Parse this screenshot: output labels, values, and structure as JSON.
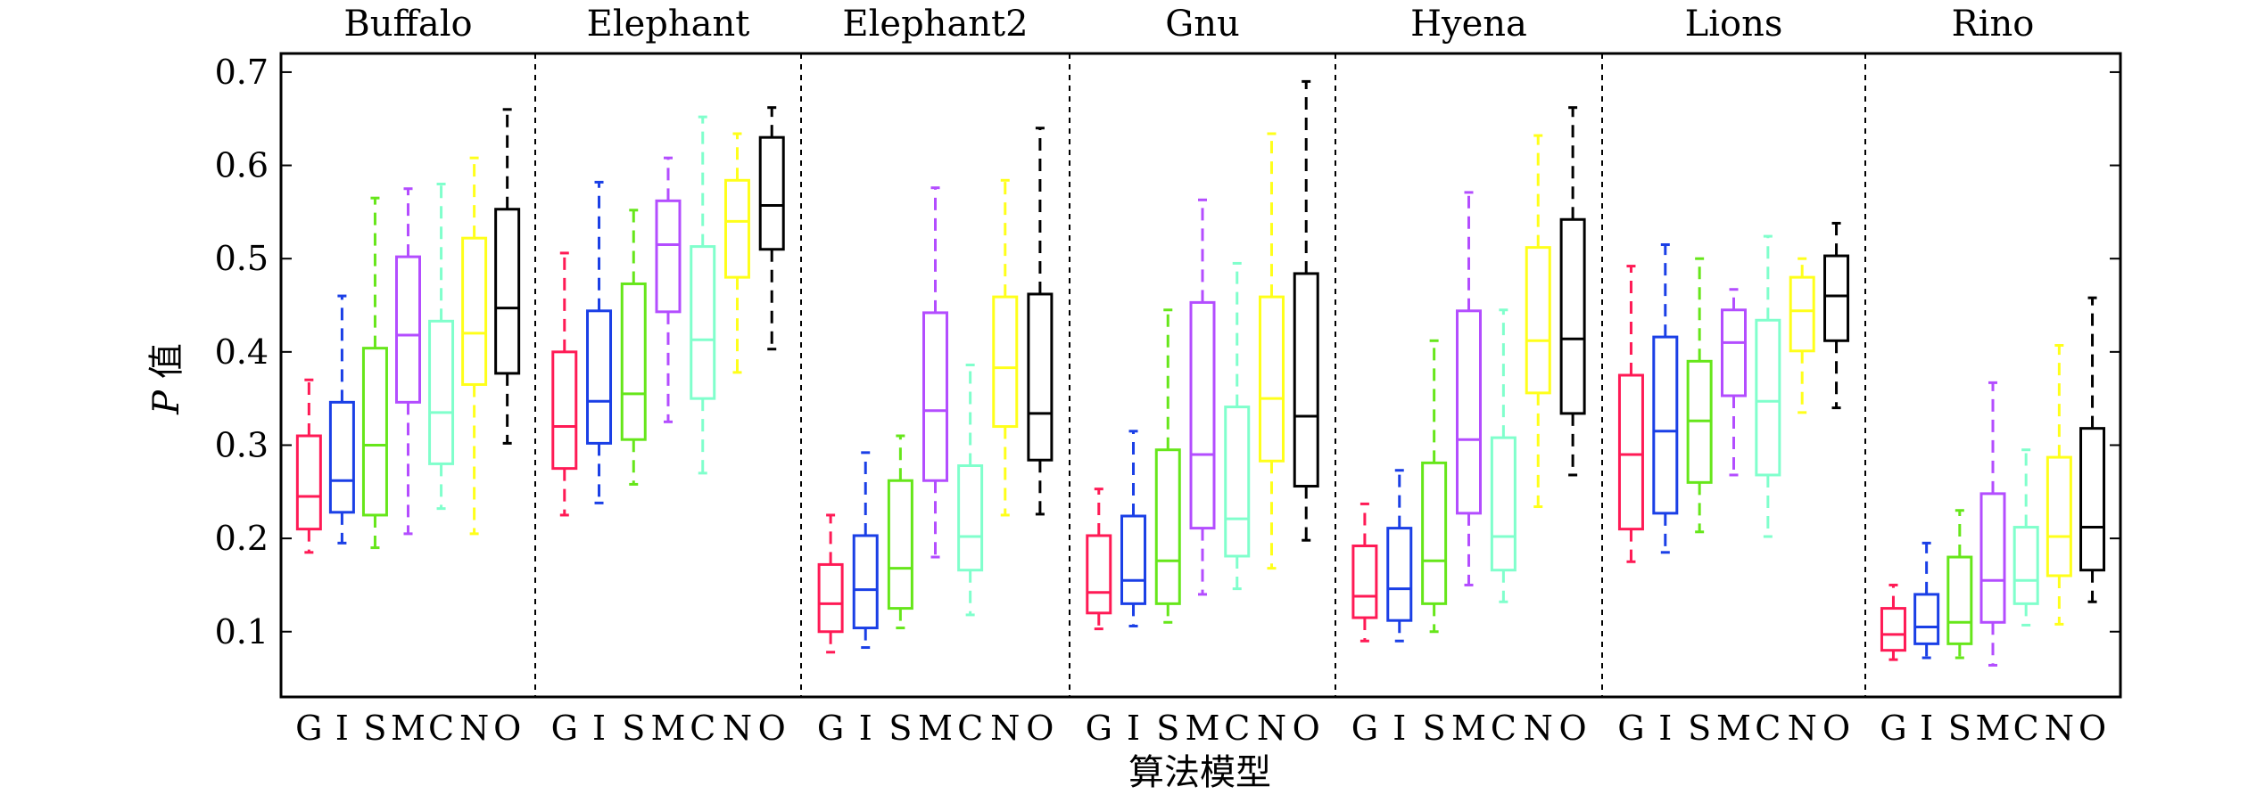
{
  "chart_data": {
    "type": "box",
    "ylabel_italic": "P",
    "ylabel_rest": " 值",
    "xlabel": "算法模型",
    "ylim": [
      0.03,
      0.72
    ],
    "yticks": [
      0.1,
      0.2,
      0.3,
      0.4,
      0.5,
      0.6,
      0.7
    ],
    "ytick_labels": [
      "0.1",
      "0.2",
      "0.3",
      "0.4",
      "0.5",
      "0.6",
      "0.7"
    ],
    "algorithms": [
      "G",
      "I",
      "S",
      "M",
      "C",
      "N",
      "O"
    ],
    "algorithm_colors": [
      "#ff1a55",
      "#1a3fe6",
      "#66e61a",
      "#b34dff",
      "#80ffcc",
      "#ffff1a",
      "#000000"
    ],
    "panels": [
      {
        "name": "Buffalo",
        "boxes": [
          {
            "min": 0.185,
            "q1": 0.21,
            "median": 0.245,
            "q3": 0.31,
            "max": 0.37
          },
          {
            "min": 0.195,
            "q1": 0.228,
            "median": 0.262,
            "q3": 0.346,
            "max": 0.46
          },
          {
            "min": 0.19,
            "q1": 0.225,
            "median": 0.3,
            "q3": 0.404,
            "max": 0.565
          },
          {
            "min": 0.205,
            "q1": 0.346,
            "median": 0.418,
            "q3": 0.502,
            "max": 0.575
          },
          {
            "min": 0.232,
            "q1": 0.28,
            "median": 0.335,
            "q3": 0.433,
            "max": 0.58
          },
          {
            "min": 0.205,
            "q1": 0.365,
            "median": 0.42,
            "q3": 0.522,
            "max": 0.608
          },
          {
            "min": 0.302,
            "q1": 0.377,
            "median": 0.447,
            "q3": 0.553,
            "max": 0.66
          }
        ]
      },
      {
        "name": "Elephant",
        "boxes": [
          {
            "min": 0.225,
            "q1": 0.275,
            "median": 0.32,
            "q3": 0.4,
            "max": 0.506
          },
          {
            "min": 0.238,
            "q1": 0.302,
            "median": 0.347,
            "q3": 0.444,
            "max": 0.582
          },
          {
            "min": 0.258,
            "q1": 0.306,
            "median": 0.355,
            "q3": 0.473,
            "max": 0.552
          },
          {
            "min": 0.325,
            "q1": 0.443,
            "median": 0.515,
            "q3": 0.562,
            "max": 0.608
          },
          {
            "min": 0.27,
            "q1": 0.35,
            "median": 0.413,
            "q3": 0.513,
            "max": 0.652
          },
          {
            "min": 0.378,
            "q1": 0.48,
            "median": 0.54,
            "q3": 0.584,
            "max": 0.634
          },
          {
            "min": 0.403,
            "q1": 0.51,
            "median": 0.557,
            "q3": 0.63,
            "max": 0.662
          }
        ]
      },
      {
        "name": "Elephant2",
        "boxes": [
          {
            "min": 0.078,
            "q1": 0.1,
            "median": 0.13,
            "q3": 0.172,
            "max": 0.225
          },
          {
            "min": 0.083,
            "q1": 0.104,
            "median": 0.145,
            "q3": 0.203,
            "max": 0.292
          },
          {
            "min": 0.104,
            "q1": 0.125,
            "median": 0.168,
            "q3": 0.262,
            "max": 0.31
          },
          {
            "min": 0.18,
            "q1": 0.262,
            "median": 0.337,
            "q3": 0.442,
            "max": 0.576
          },
          {
            "min": 0.118,
            "q1": 0.166,
            "median": 0.202,
            "q3": 0.278,
            "max": 0.386
          },
          {
            "min": 0.225,
            "q1": 0.32,
            "median": 0.383,
            "q3": 0.459,
            "max": 0.584
          },
          {
            "min": 0.226,
            "q1": 0.284,
            "median": 0.334,
            "q3": 0.462,
            "max": 0.64
          }
        ]
      },
      {
        "name": "Gnu",
        "boxes": [
          {
            "min": 0.103,
            "q1": 0.12,
            "median": 0.142,
            "q3": 0.203,
            "max": 0.253
          },
          {
            "min": 0.106,
            "q1": 0.13,
            "median": 0.155,
            "q3": 0.224,
            "max": 0.315
          },
          {
            "min": 0.11,
            "q1": 0.13,
            "median": 0.176,
            "q3": 0.295,
            "max": 0.445
          },
          {
            "min": 0.14,
            "q1": 0.211,
            "median": 0.29,
            "q3": 0.453,
            "max": 0.563
          },
          {
            "min": 0.146,
            "q1": 0.181,
            "median": 0.221,
            "q3": 0.341,
            "max": 0.495
          },
          {
            "min": 0.168,
            "q1": 0.283,
            "median": 0.35,
            "q3": 0.459,
            "max": 0.634
          },
          {
            "min": 0.198,
            "q1": 0.256,
            "median": 0.331,
            "q3": 0.484,
            "max": 0.69
          }
        ]
      },
      {
        "name": "Hyena",
        "boxes": [
          {
            "min": 0.09,
            "q1": 0.115,
            "median": 0.138,
            "q3": 0.192,
            "max": 0.237
          },
          {
            "min": 0.09,
            "q1": 0.112,
            "median": 0.146,
            "q3": 0.211,
            "max": 0.273
          },
          {
            "min": 0.1,
            "q1": 0.13,
            "median": 0.176,
            "q3": 0.281,
            "max": 0.412
          },
          {
            "min": 0.15,
            "q1": 0.227,
            "median": 0.306,
            "q3": 0.444,
            "max": 0.571
          },
          {
            "min": 0.132,
            "q1": 0.166,
            "median": 0.202,
            "q3": 0.308,
            "max": 0.445
          },
          {
            "min": 0.234,
            "q1": 0.356,
            "median": 0.412,
            "q3": 0.512,
            "max": 0.632
          },
          {
            "min": 0.268,
            "q1": 0.334,
            "median": 0.414,
            "q3": 0.542,
            "max": 0.662
          }
        ]
      },
      {
        "name": "Lions",
        "boxes": [
          {
            "min": 0.175,
            "q1": 0.21,
            "median": 0.29,
            "q3": 0.375,
            "max": 0.492
          },
          {
            "min": 0.185,
            "q1": 0.227,
            "median": 0.315,
            "q3": 0.416,
            "max": 0.515
          },
          {
            "min": 0.207,
            "q1": 0.26,
            "median": 0.326,
            "q3": 0.39,
            "max": 0.5
          },
          {
            "min": 0.268,
            "q1": 0.353,
            "median": 0.41,
            "q3": 0.445,
            "max": 0.467
          },
          {
            "min": 0.202,
            "q1": 0.268,
            "median": 0.347,
            "q3": 0.434,
            "max": 0.524
          },
          {
            "min": 0.335,
            "q1": 0.401,
            "median": 0.444,
            "q3": 0.48,
            "max": 0.5
          },
          {
            "min": 0.34,
            "q1": 0.412,
            "median": 0.46,
            "q3": 0.503,
            "max": 0.538
          }
        ]
      },
      {
        "name": "Rino",
        "boxes": [
          {
            "min": 0.07,
            "q1": 0.08,
            "median": 0.097,
            "q3": 0.125,
            "max": 0.15
          },
          {
            "min": 0.072,
            "q1": 0.087,
            "median": 0.105,
            "q3": 0.14,
            "max": 0.195
          },
          {
            "min": 0.072,
            "q1": 0.087,
            "median": 0.11,
            "q3": 0.18,
            "max": 0.23
          },
          {
            "min": 0.064,
            "q1": 0.11,
            "median": 0.155,
            "q3": 0.248,
            "max": 0.367
          },
          {
            "min": 0.107,
            "q1": 0.13,
            "median": 0.155,
            "q3": 0.212,
            "max": 0.295
          },
          {
            "min": 0.108,
            "q1": 0.16,
            "median": 0.202,
            "q3": 0.287,
            "max": 0.407
          },
          {
            "min": 0.132,
            "q1": 0.166,
            "median": 0.212,
            "q3": 0.318,
            "max": 0.458
          }
        ]
      }
    ]
  }
}
